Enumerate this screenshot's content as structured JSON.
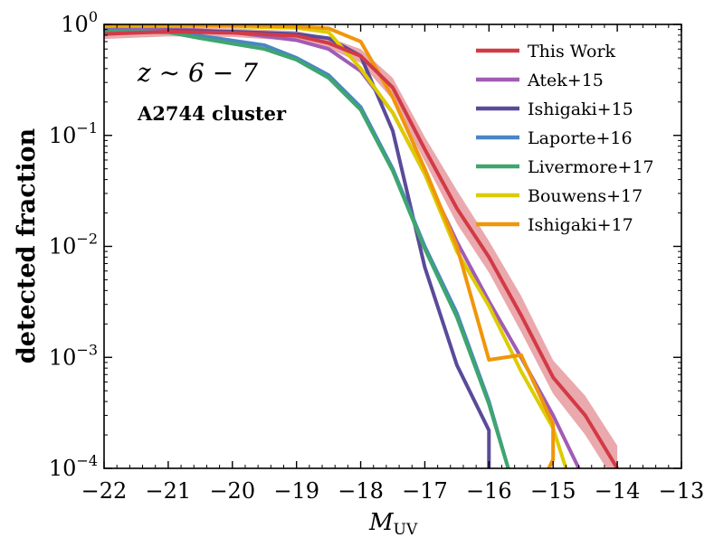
{
  "chart_data": {
    "type": "line",
    "title": "",
    "xlabel": "M",
    "xlabel_sub": "UV",
    "ylabel": "detected fraction",
    "yscale": "log",
    "xlim": [
      -22,
      -13
    ],
    "ylim": [
      0.0001,
      1
    ],
    "x_ticks": [
      "−22",
      "−21",
      "−20",
      "−19",
      "−18",
      "−17",
      "−16",
      "−15",
      "−14",
      "−13"
    ],
    "x_tick_values": [
      -22,
      -21,
      -20,
      -19,
      -18,
      -17,
      -16,
      -15,
      -14,
      -13
    ],
    "y_ticks": [
      {
        "value": 1,
        "base": "10",
        "exp": "0"
      },
      {
        "value": 0.1,
        "base": "10",
        "exp": "−1"
      },
      {
        "value": 0.01,
        "base": "10",
        "exp": "−2"
      },
      {
        "value": 0.001,
        "base": "10",
        "exp": "−3"
      },
      {
        "value": 0.0001,
        "base": "10",
        "exp": "−4"
      }
    ],
    "annotations": {
      "redshift": "z ∼ 6 − 7",
      "field": "A2744 cluster"
    },
    "legend_position": "top-right",
    "band": {
      "name": "This Work uncertainty",
      "color": "#e8a0a4",
      "x": [
        -22,
        -21,
        -20,
        -19,
        -18.5,
        -18,
        -17.5,
        -17,
        -16.5,
        -16,
        -15.5,
        -15,
        -14.5,
        -14
      ],
      "lower": [
        0.74,
        0.78,
        0.77,
        0.71,
        0.61,
        0.45,
        0.21,
        0.058,
        0.016,
        0.0058,
        0.0017,
        0.00047,
        0.0002,
        7e-05
      ],
      "upper": [
        0.91,
        0.94,
        0.92,
        0.87,
        0.76,
        0.6,
        0.33,
        0.097,
        0.032,
        0.0112,
        0.0036,
        0.00094,
        0.00045,
        0.00016
      ]
    },
    "series": [
      {
        "name": "Atek+15",
        "color": "#a05cb4",
        "x": [
          -22,
          -21,
          -20,
          -19,
          -18.5,
          -18,
          -17.5,
          -17,
          -16.5,
          -16,
          -15.5,
          -15,
          -14.6
        ],
        "y": [
          0.9,
          0.92,
          0.85,
          0.72,
          0.6,
          0.38,
          0.16,
          0.045,
          0.011,
          0.0032,
          0.001,
          0.0003,
          0.0001
        ]
      },
      {
        "name": "Ishigaki+15",
        "color": "#5a4a9a",
        "x": [
          -22,
          -21,
          -20,
          -19,
          -18.5,
          -18,
          -17.5,
          -17,
          -16.5,
          -16,
          -16
        ],
        "y": [
          0.85,
          0.88,
          0.86,
          0.82,
          0.75,
          0.52,
          0.11,
          0.0065,
          0.00085,
          0.00022,
          0.0001
        ]
      },
      {
        "name": "Laporte+16",
        "color": "#4a86c4",
        "x": [
          -22,
          -21,
          -20.5,
          -19.5,
          -19,
          -18.5,
          -18,
          -17.5,
          -17,
          -16.5,
          -16,
          -15.7
        ],
        "y": [
          0.88,
          0.87,
          0.79,
          0.65,
          0.5,
          0.35,
          0.18,
          0.05,
          0.01,
          0.0025,
          0.0004,
          0.0001
        ]
      },
      {
        "name": "Livermore+17",
        "color": "#3ea66e",
        "x": [
          -22,
          -21,
          -20.5,
          -19.5,
          -19,
          -18.5,
          -18,
          -17.5,
          -17,
          -16.5,
          -16,
          -15.7
        ],
        "y": [
          0.86,
          0.85,
          0.75,
          0.6,
          0.48,
          0.33,
          0.17,
          0.048,
          0.0095,
          0.0023,
          0.00038,
          0.0001
        ]
      },
      {
        "name": "Bouwens+17",
        "color": "#dccc00",
        "x": [
          -22,
          -21,
          -20,
          -19,
          -18.5,
          -18,
          -17.5,
          -17,
          -16.5,
          -16,
          -15.5,
          -15,
          -14.8
        ],
        "y": [
          0.97,
          0.97,
          0.96,
          0.93,
          0.85,
          0.4,
          0.16,
          0.045,
          0.009,
          0.0029,
          0.00075,
          0.00023,
          0.0001
        ]
      },
      {
        "name": "Ishigaki+17",
        "color": "#f0960a",
        "x": [
          -22,
          -21,
          -20,
          -19,
          -18.5,
          -18,
          -17.5,
          -17,
          -16.5,
          -16,
          -15.5,
          -15,
          -15,
          -15.07
        ],
        "y": [
          0.99,
          0.99,
          0.98,
          0.96,
          0.92,
          0.7,
          0.22,
          0.05,
          0.01,
          0.00095,
          0.00105,
          0.00025,
          0.00012,
          0.0001
        ]
      },
      {
        "name": "This Work",
        "color": "#d23a46",
        "x": [
          -22,
          -21,
          -20,
          -19,
          -18.5,
          -18,
          -17.5,
          -17,
          -16.5,
          -16,
          -15.5,
          -15,
          -14.5,
          -14
        ],
        "y": [
          0.82,
          0.86,
          0.84,
          0.79,
          0.68,
          0.52,
          0.27,
          0.075,
          0.022,
          0.008,
          0.0024,
          0.00066,
          0.0003,
          0.0001
        ]
      }
    ],
    "legend": [
      {
        "label": "This Work",
        "color": "#d23a46"
      },
      {
        "label": "Atek+15",
        "color": "#a05cb4"
      },
      {
        "label": "Ishigaki+15",
        "color": "#5a4a9a"
      },
      {
        "label": "Laporte+16",
        "color": "#4a86c4"
      },
      {
        "label": "Livermore+17",
        "color": "#3ea66e"
      },
      {
        "label": "Bouwens+17",
        "color": "#dccc00"
      },
      {
        "label": "Ishigaki+17",
        "color": "#f0960a"
      }
    ]
  }
}
